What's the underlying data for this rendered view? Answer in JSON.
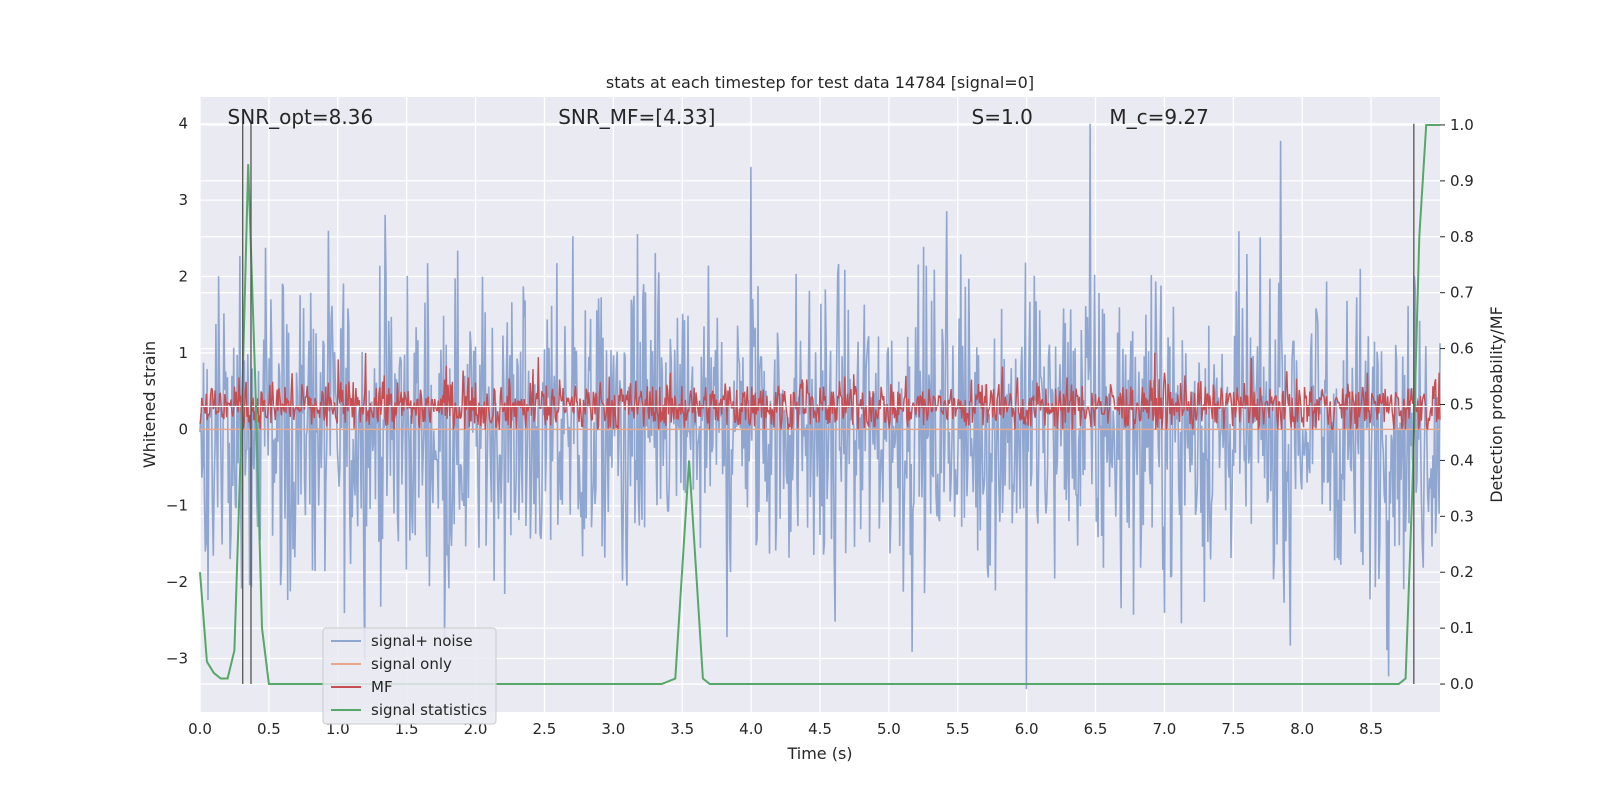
{
  "chart_data": {
    "type": "line",
    "title": "stats at each timestep for test data 14784 [signal=0]",
    "xlabel": "Time (s)",
    "ylabel": "Whitened strain",
    "ylabel_right": "Detection probability/MF",
    "xlim": [
      0.0,
      9.0
    ],
    "ylim": [
      -3.7,
      4.35
    ],
    "ylim_right": [
      -0.05,
      1.05
    ],
    "xticks": [
      "0.0",
      "0.5",
      "1.0",
      "1.5",
      "2.0",
      "2.5",
      "3.0",
      "3.5",
      "4.0",
      "4.5",
      "5.0",
      "5.5",
      "6.0",
      "6.5",
      "7.0",
      "7.5",
      "8.0",
      "8.5"
    ],
    "yticks": [
      "4",
      "3",
      "2",
      "1",
      "0",
      "−1",
      "−2",
      "−3"
    ],
    "yticks_right": [
      "1.0",
      "0.9",
      "0.8",
      "0.7",
      "0.6",
      "0.5",
      "0.4",
      "0.3",
      "0.2",
      "0.1",
      "0.0"
    ],
    "grid": true,
    "legend_position": "lower-left",
    "annotations": [
      {
        "text": "SNR_opt=8.36"
      },
      {
        "text": "SNR_MF=[4.33]"
      },
      {
        "text": "S=1.0"
      },
      {
        "text": "M_c=9.27"
      }
    ],
    "vertical_lines_x": [
      0.31,
      0.37,
      8.81
    ],
    "series": [
      {
        "name": "signal+ noise",
        "axis": "left",
        "color": "#8fa6d0",
        "style": "dense noise",
        "range": [
          -3.4,
          4.0
        ]
      },
      {
        "name": "signal only",
        "axis": "left",
        "color": "#e8a78a",
        "style": "flat",
        "value": 0.0
      },
      {
        "name": "MF",
        "axis": "left",
        "color": "#c44e52",
        "style": "dense noise",
        "range": [
          0.0,
          1.0
        ]
      },
      {
        "name": "signal statistics",
        "axis": "right",
        "color": "#55a868",
        "x": [
          0.0,
          0.05,
          0.1,
          0.15,
          0.2,
          0.25,
          0.3,
          0.35,
          0.4,
          0.45,
          0.5,
          3.35,
          3.45,
          3.55,
          3.65,
          3.7,
          8.6,
          8.7,
          8.75,
          8.8,
          8.85,
          8.9,
          8.95,
          9.0
        ],
        "y": [
          0.2,
          0.04,
          0.02,
          0.01,
          0.01,
          0.06,
          0.45,
          0.93,
          0.55,
          0.1,
          0.0,
          0.0,
          0.01,
          0.4,
          0.01,
          0.0,
          0.0,
          0.0,
          0.01,
          0.35,
          0.8,
          1.0,
          1.0,
          1.0
        ]
      }
    ]
  },
  "legend": {
    "items": [
      {
        "label": "signal+ noise",
        "color": "#8fa6d0"
      },
      {
        "label": "signal only",
        "color": "#e8a78a"
      },
      {
        "label": "MF",
        "color": "#c44e52"
      },
      {
        "label": "signal statistics",
        "color": "#55a868"
      }
    ]
  },
  "colors": {
    "plot_background": "#eaeaf2",
    "grid": "#ffffff",
    "vline": "#555555"
  }
}
